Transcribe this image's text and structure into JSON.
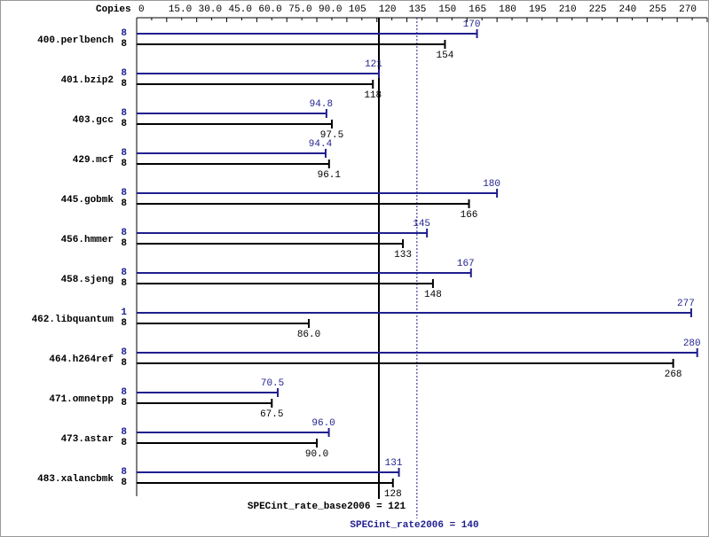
{
  "chart_data": {
    "type": "bar",
    "orientation": "horizontal",
    "x_label": "Copies",
    "categories": [
      "400.perlbench",
      "401.bzip2",
      "403.gcc",
      "429.mcf",
      "445.gobmk",
      "456.hmmer",
      "458.sjeng",
      "462.libquantum",
      "464.h264ref",
      "471.omnetpp",
      "473.astar",
      "483.xalancbmk"
    ],
    "series": [
      {
        "color": "#1f1f8f",
        "copies": [
          8,
          8,
          8,
          8,
          8,
          8,
          8,
          1,
          8,
          8,
          8,
          8
        ],
        "values": [
          170,
          121,
          94.8,
          94.4,
          180,
          145,
          167,
          277,
          280,
          70.5,
          96.0,
          131
        ],
        "value_labels": [
          "170",
          "121",
          "94.8",
          "94.4",
          "180",
          "145",
          "167",
          "277",
          "280",
          "70.5",
          "96.0",
          "131"
        ]
      },
      {
        "color": "#000000",
        "copies": [
          8,
          8,
          8,
          8,
          8,
          8,
          8,
          8,
          8,
          8,
          8,
          8
        ],
        "values": [
          154,
          118,
          97.5,
          96.1,
          166,
          133,
          148,
          86.0,
          268,
          67.5,
          90.0,
          128
        ],
        "value_labels": [
          "154",
          "118",
          "97.5",
          "96.1",
          "166",
          "133",
          "148",
          "86.0",
          "268",
          "67.5",
          "90.0",
          "128"
        ]
      }
    ],
    "xlim": [
      0,
      285
    ],
    "xticks": [
      0,
      {
        "value": 15,
        "label": "15.0"
      },
      {
        "value": 30,
        "label": "30.0"
      },
      {
        "value": 45,
        "label": "45.0"
      },
      {
        "value": 60,
        "label": "60.0"
      },
      {
        "value": 75,
        "label": "75.0"
      },
      {
        "value": 90,
        "label": "90.0"
      },
      105,
      120,
      135,
      150,
      165,
      180,
      195,
      210,
      225,
      240,
      255,
      270,
      285
    ],
    "reference_lines": [
      {
        "label": "SPECint_rate_base2006 = 121",
        "value": 121,
        "color": "#000000"
      },
      {
        "label": "SPECint_rate2006 = 140",
        "value": 140,
        "color": "#1f1f8f"
      }
    ]
  }
}
